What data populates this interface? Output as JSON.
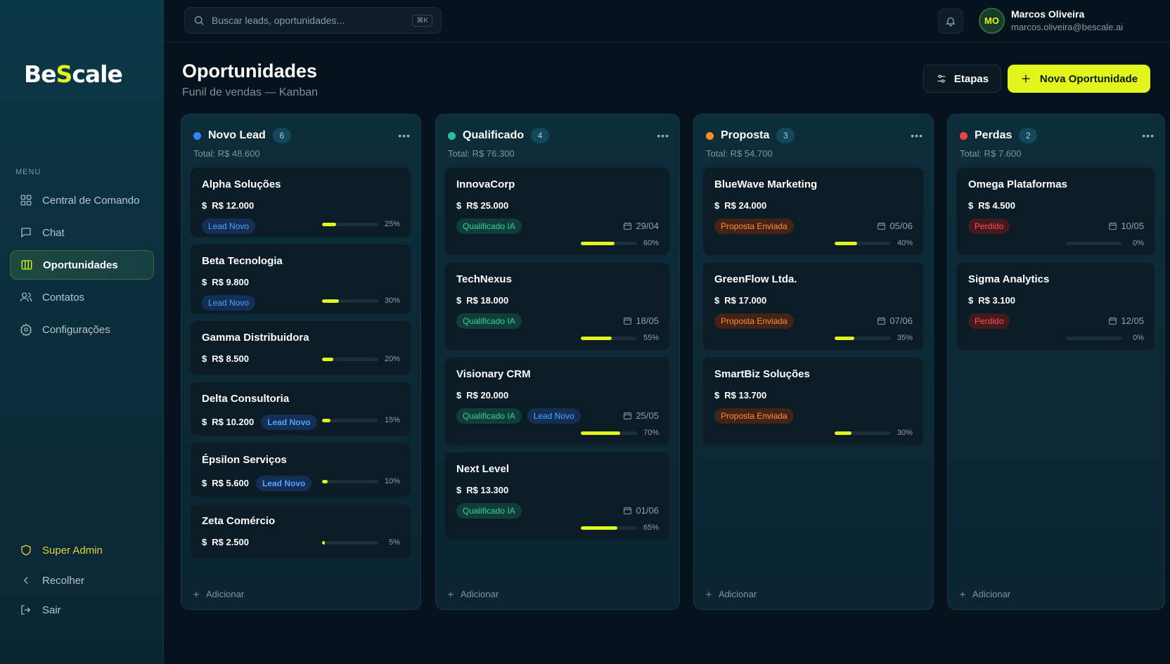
{
  "brand": {
    "part1": "Be",
    "part2": "S",
    "part3": "cale",
    "accent": "#e2f51c"
  },
  "search": {
    "placeholder": "Buscar leads, oportunidades...",
    "shortcut": "⌘K"
  },
  "user": {
    "initials": "MO",
    "name": "Marcos Oliveira",
    "email": "marcos.oliveira@bescale.ai"
  },
  "sidebar": {
    "menu_label": "MENU",
    "items": [
      {
        "label": "Central de Comando",
        "icon": "dashboard-icon"
      },
      {
        "label": "Chat",
        "icon": "chat-icon"
      },
      {
        "label": "Oportunidades",
        "icon": "kanban-icon",
        "active": true
      },
      {
        "label": "Contatos",
        "icon": "users-icon"
      },
      {
        "label": "Configurações",
        "icon": "gear-icon"
      }
    ],
    "footer": [
      {
        "label": "Super Admin",
        "icon": "shield-icon"
      },
      {
        "label": "Recolher",
        "icon": "chevron-left-icon"
      },
      {
        "label": "Sair",
        "icon": "logout-icon"
      }
    ]
  },
  "page": {
    "title": "Oportunidades",
    "subtitle": "Funil de vendas — Kanban"
  },
  "actions": {
    "etapas": "Etapas",
    "nova": "Nova Oportunidade"
  },
  "add_label": "Adicionar",
  "columns": [
    {
      "title": "Novo Lead",
      "count": "6",
      "total": "Total: R$ 48.600",
      "color": "#2f86ff",
      "cards": [
        {
          "name": "Alpha Soluções",
          "value": "R$ 12.000",
          "badges": [
            "Lead Novo"
          ],
          "progress": 25,
          "pct": "25%"
        },
        {
          "name": "Beta Tecnologia",
          "value": "R$ 9.800",
          "badges": [
            "Lead Novo"
          ],
          "progress": 30,
          "pct": "30%"
        },
        {
          "name": "Gamma Distribuidora",
          "value": "R$ 8.500",
          "badges": [],
          "progress": 20,
          "pct": "20%"
        },
        {
          "name": "Delta Consultoria",
          "value": "R$ 10.200",
          "inline_badge": "Lead Novo",
          "progress": 15,
          "pct": "15%"
        },
        {
          "name": "Épsilon Serviços",
          "value": "R$ 5.600",
          "inline_badge": "Lead Novo",
          "progress": 10,
          "pct": "10%"
        },
        {
          "name": "Zeta Comércio",
          "value": "R$ 2.500",
          "badges": [],
          "progress": 5,
          "pct": "5%"
        }
      ]
    },
    {
      "title": "Qualificado",
      "count": "4",
      "total": "Total: R$ 76.300",
      "color": "#22c39a",
      "cards": [
        {
          "name": "InnovaCorp",
          "value": "R$ 25.000",
          "badges": [
            "Qualificado IA"
          ],
          "date": "29/04",
          "progress": 60,
          "pct": "60%"
        },
        {
          "name": "TechNexus",
          "value": "R$ 18.000",
          "badges": [
            "Qualificado IA"
          ],
          "date": "18/05",
          "progress": 55,
          "pct": "55%"
        },
        {
          "name": "Visionary CRM",
          "value": "R$ 20.000",
          "badges": [
            "Qualificado IA",
            "Lead Novo"
          ],
          "date": "25/05",
          "progress": 70,
          "pct": "70%"
        },
        {
          "name": "Next Level",
          "value": "R$ 13.300",
          "badges": [
            "Qualificado IA"
          ],
          "date": "01/06",
          "progress": 65,
          "pct": "65%"
        }
      ]
    },
    {
      "title": "Proposta",
      "count": "3",
      "total": "Total: R$ 54.700",
      "color": "#ff8a1f",
      "cards": [
        {
          "name": "BlueWave Marketing",
          "value": "R$ 24.000",
          "badges": [
            "Proposta Enviada"
          ],
          "date": "05/06",
          "progress": 40,
          "pct": "40%"
        },
        {
          "name": "GreenFlow Ltda.",
          "value": "R$ 17.000",
          "badges": [
            "Proposta Enviada"
          ],
          "date": "07/06",
          "progress": 35,
          "pct": "35%"
        },
        {
          "name": "SmartBiz Soluções",
          "value": "R$ 13.700",
          "badges": [
            "Proposta Enviada"
          ],
          "progress": 30,
          "pct": "30%"
        }
      ]
    },
    {
      "title": "Perdas",
      "count": "2",
      "total": "Total: R$ 7.600",
      "color": "#f04444",
      "cards": [
        {
          "name": "Omega Plataformas",
          "value": "R$ 4.500",
          "badges": [
            "Perdido"
          ],
          "date": "10/05",
          "progress": 0,
          "pct": "0%"
        },
        {
          "name": "Sigma Analytics",
          "value": "R$ 3.100",
          "badges": [
            "Perdido"
          ],
          "date": "12/05",
          "progress": 0,
          "pct": "0%"
        }
      ]
    }
  ]
}
